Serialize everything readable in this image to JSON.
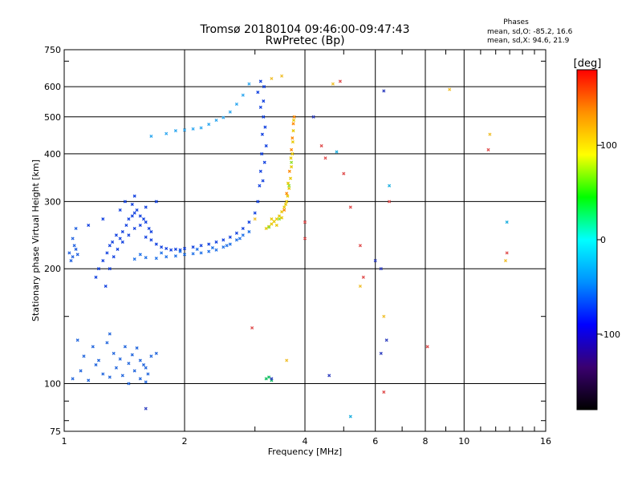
{
  "chart_data": {
    "type": "scatter",
    "title": "Tromsø 20180104 09:46:00-09:47:43",
    "subtitle": "RwPretec (Bp)",
    "xlabel": "Frequency [MHz]",
    "ylabel": "Stationary phase Virtual Height [km]",
    "x_scale": "log",
    "y_scale": "log",
    "xlim": [
      1,
      16
    ],
    "ylim": [
      75,
      750
    ],
    "x_ticks": [
      1,
      2,
      4,
      6,
      8,
      10,
      16
    ],
    "y_ticks": [
      75,
      100,
      200,
      300,
      400,
      500,
      600,
      750
    ],
    "x_minor_ticks": [
      3,
      5,
      7,
      9,
      11,
      12,
      13,
      14,
      15
    ],
    "y_minor_ticks": [
      80,
      90,
      150,
      700
    ],
    "grid": true,
    "stats": {
      "heading": "Phases",
      "line_o": "mean, sd,O: -85.2, 16.6",
      "line_x": "mean, sd,X:  94.6, 21.9"
    },
    "colorbar": {
      "label": "[deg]",
      "range": [
        -180,
        180
      ],
      "ticks": [
        100,
        0,
        -100
      ],
      "colors": [
        "#000000",
        "#3a0070",
        "#0000ff",
        "#0090ff",
        "#00ffff",
        "#00ff00",
        "#ffff00",
        "#ff9000",
        "#ff0000"
      ]
    },
    "series": [
      {
        "color": "#2060e0",
        "points": [
          [
            1.03,
            220
          ],
          [
            1.05,
            215
          ],
          [
            1.07,
            225
          ],
          [
            1.04,
            210
          ],
          [
            1.06,
            230
          ],
          [
            1.08,
            218
          ],
          [
            1.05,
            240
          ],
          [
            1.07,
            255
          ]
        ]
      },
      {
        "color": "#2266dd",
        "points": [
          [
            1.05,
            103
          ],
          [
            1.1,
            108
          ],
          [
            1.15,
            102
          ],
          [
            1.2,
            112
          ],
          [
            1.25,
            106
          ],
          [
            1.3,
            104
          ],
          [
            1.35,
            110
          ],
          [
            1.4,
            105
          ],
          [
            1.45,
            113
          ],
          [
            1.5,
            108
          ],
          [
            1.55,
            115
          ],
          [
            1.6,
            110
          ],
          [
            1.65,
            118
          ],
          [
            1.7,
            120
          ],
          [
            1.12,
            118
          ],
          [
            1.18,
            125
          ],
          [
            1.22,
            115
          ],
          [
            1.28,
            128
          ],
          [
            1.33,
            120
          ],
          [
            1.38,
            116
          ],
          [
            1.42,
            125
          ],
          [
            1.48,
            119
          ],
          [
            1.52,
            124
          ],
          [
            1.58,
            112
          ],
          [
            1.62,
            106
          ],
          [
            1.08,
            130
          ],
          [
            1.3,
            135
          ],
          [
            1.45,
            100
          ],
          [
            1.55,
            103
          ],
          [
            1.6,
            101
          ]
        ]
      },
      {
        "color": "#1040e0",
        "points": [
          [
            1.2,
            190
          ],
          [
            1.22,
            200
          ],
          [
            1.25,
            210
          ],
          [
            1.27,
            180
          ],
          [
            1.28,
            220
          ],
          [
            1.3,
            230
          ],
          [
            1.32,
            235
          ],
          [
            1.35,
            245
          ],
          [
            1.38,
            240
          ],
          [
            1.4,
            250
          ],
          [
            1.43,
            260
          ],
          [
            1.45,
            270
          ],
          [
            1.48,
            275
          ],
          [
            1.5,
            280
          ],
          [
            1.52,
            285
          ],
          [
            1.55,
            275
          ],
          [
            1.58,
            270
          ],
          [
            1.6,
            265
          ],
          [
            1.63,
            255
          ],
          [
            1.65,
            250
          ],
          [
            1.3,
            200
          ],
          [
            1.33,
            215
          ],
          [
            1.36,
            225
          ],
          [
            1.4,
            235
          ],
          [
            1.45,
            245
          ],
          [
            1.5,
            255
          ],
          [
            1.55,
            260
          ],
          [
            1.6,
            242
          ],
          [
            1.65,
            238
          ],
          [
            1.7,
            232
          ],
          [
            1.75,
            228
          ],
          [
            1.8,
            226
          ],
          [
            1.85,
            224
          ],
          [
            1.9,
            225
          ],
          [
            1.95,
            224
          ],
          [
            2.0,
            226
          ],
          [
            2.1,
            228
          ],
          [
            2.2,
            230
          ],
          [
            2.3,
            232
          ],
          [
            2.4,
            235
          ],
          [
            2.5,
            238
          ],
          [
            2.6,
            242
          ],
          [
            2.7,
            248
          ],
          [
            2.8,
            255
          ],
          [
            2.9,
            265
          ],
          [
            3.0,
            280
          ],
          [
            3.05,
            300
          ],
          [
            3.08,
            330
          ],
          [
            3.1,
            360
          ],
          [
            3.12,
            400
          ],
          [
            3.13,
            450
          ],
          [
            3.15,
            500
          ],
          [
            3.15,
            550
          ],
          [
            3.16,
            600
          ],
          [
            3.1,
            620
          ],
          [
            3.05,
            580
          ],
          [
            3.1,
            530
          ],
          [
            3.18,
            470
          ],
          [
            3.2,
            420
          ],
          [
            3.17,
            380
          ],
          [
            3.14,
            340
          ],
          [
            1.42,
            300
          ],
          [
            1.5,
            310
          ],
          [
            1.48,
            295
          ],
          [
            1.38,
            285
          ],
          [
            1.25,
            270
          ],
          [
            1.15,
            260
          ],
          [
            1.6,
            290
          ],
          [
            1.7,
            300
          ]
        ]
      },
      {
        "color": "#1e70e8",
        "points": [
          [
            1.5,
            212
          ],
          [
            1.6,
            214
          ],
          [
            1.7,
            213
          ],
          [
            1.8,
            215
          ],
          [
            1.9,
            216
          ],
          [
            2.0,
            218
          ],
          [
            2.1,
            219
          ],
          [
            2.2,
            220
          ],
          [
            2.3,
            222
          ],
          [
            2.4,
            224
          ],
          [
            2.5,
            228
          ],
          [
            2.6,
            232
          ],
          [
            2.7,
            238
          ],
          [
            2.8,
            245
          ],
          [
            1.55,
            218
          ],
          [
            1.75,
            220
          ],
          [
            1.95,
            222
          ],
          [
            2.15,
            225
          ],
          [
            2.35,
            227
          ],
          [
            2.55,
            230
          ],
          [
            2.75,
            240
          ],
          [
            2.9,
            250
          ]
        ]
      },
      {
        "color": "#30a8f0",
        "points": [
          [
            1.65,
            445
          ],
          [
            1.8,
            452
          ],
          [
            1.9,
            460
          ],
          [
            2.0,
            462
          ],
          [
            2.1,
            465
          ],
          [
            2.2,
            468
          ],
          [
            2.3,
            478
          ],
          [
            2.4,
            490
          ],
          [
            2.5,
            498
          ],
          [
            2.6,
            515
          ],
          [
            2.7,
            540
          ],
          [
            2.8,
            570
          ],
          [
            2.9,
            610
          ]
        ]
      },
      {
        "color": "#e8c800",
        "points": [
          [
            3.2,
            255
          ],
          [
            3.25,
            258
          ],
          [
            3.3,
            262
          ],
          [
            3.35,
            266
          ],
          [
            3.4,
            270
          ],
          [
            3.45,
            275
          ],
          [
            3.5,
            282
          ],
          [
            3.55,
            290
          ],
          [
            3.6,
            300
          ],
          [
            3.62,
            310
          ],
          [
            3.65,
            325
          ],
          [
            3.68,
            345
          ],
          [
            3.7,
            370
          ],
          [
            3.72,
            400
          ],
          [
            3.73,
            430
          ],
          [
            3.74,
            460
          ],
          [
            3.75,
            490
          ],
          [
            3.3,
            270
          ],
          [
            3.4,
            260
          ],
          [
            3.5,
            272
          ],
          [
            3.58,
            295
          ],
          [
            3.63,
            335
          ],
          [
            3.69,
            390
          ]
        ]
      },
      {
        "color": "#ff8800",
        "points": [
          [
            3.66,
            360
          ],
          [
            3.7,
            410
          ],
          [
            3.72,
            440
          ],
          [
            3.74,
            480
          ],
          [
            3.76,
            500
          ],
          [
            3.6,
            315
          ],
          [
            3.55,
            285
          ]
        ]
      },
      {
        "color": "#90e030",
        "points": [
          [
            3.65,
            330
          ],
          [
            3.7,
            380
          ],
          [
            3.45,
            270
          ],
          [
            3.25,
            257
          ]
        ]
      },
      {
        "color": "#10c060",
        "points": [
          [
            3.2,
            103
          ],
          [
            3.25,
            104
          ],
          [
            3.3,
            102
          ]
        ]
      },
      {
        "color": "#e05050",
        "points": [
          [
            4.4,
            420
          ],
          [
            4.0,
            265
          ],
          [
            4.5,
            390
          ],
          [
            5.0,
            355
          ],
          [
            5.2,
            290
          ],
          [
            5.5,
            230
          ],
          [
            5.6,
            190
          ],
          [
            6.3,
            95
          ],
          [
            6.5,
            300
          ],
          [
            8.1,
            125
          ],
          [
            11.5,
            410
          ],
          [
            12.8,
            220
          ],
          [
            4.9,
            620
          ],
          [
            2.95,
            140
          ],
          [
            4.0,
            240
          ]
        ]
      },
      {
        "color": "#f0c030",
        "points": [
          [
            3.0,
            270
          ],
          [
            3.3,
            630
          ],
          [
            3.5,
            640
          ],
          [
            4.7,
            610
          ],
          [
            9.2,
            590
          ],
          [
            11.6,
            450
          ],
          [
            12.7,
            210
          ],
          [
            5.5,
            180
          ],
          [
            6.3,
            150
          ],
          [
            3.6,
            115
          ]
        ]
      },
      {
        "color": "#3040c0",
        "points": [
          [
            4.2,
            500
          ],
          [
            6.3,
            585
          ],
          [
            6.2,
            200
          ],
          [
            6.2,
            120
          ],
          [
            6.0,
            210
          ],
          [
            4.6,
            105
          ],
          [
            1.6,
            86
          ],
          [
            3.3,
            103
          ],
          [
            6.4,
            130
          ]
        ]
      },
      {
        "color": "#20b0e0",
        "points": [
          [
            4.8,
            405
          ],
          [
            6.5,
            330
          ],
          [
            5.2,
            82
          ],
          [
            12.8,
            265
          ]
        ]
      }
    ]
  }
}
